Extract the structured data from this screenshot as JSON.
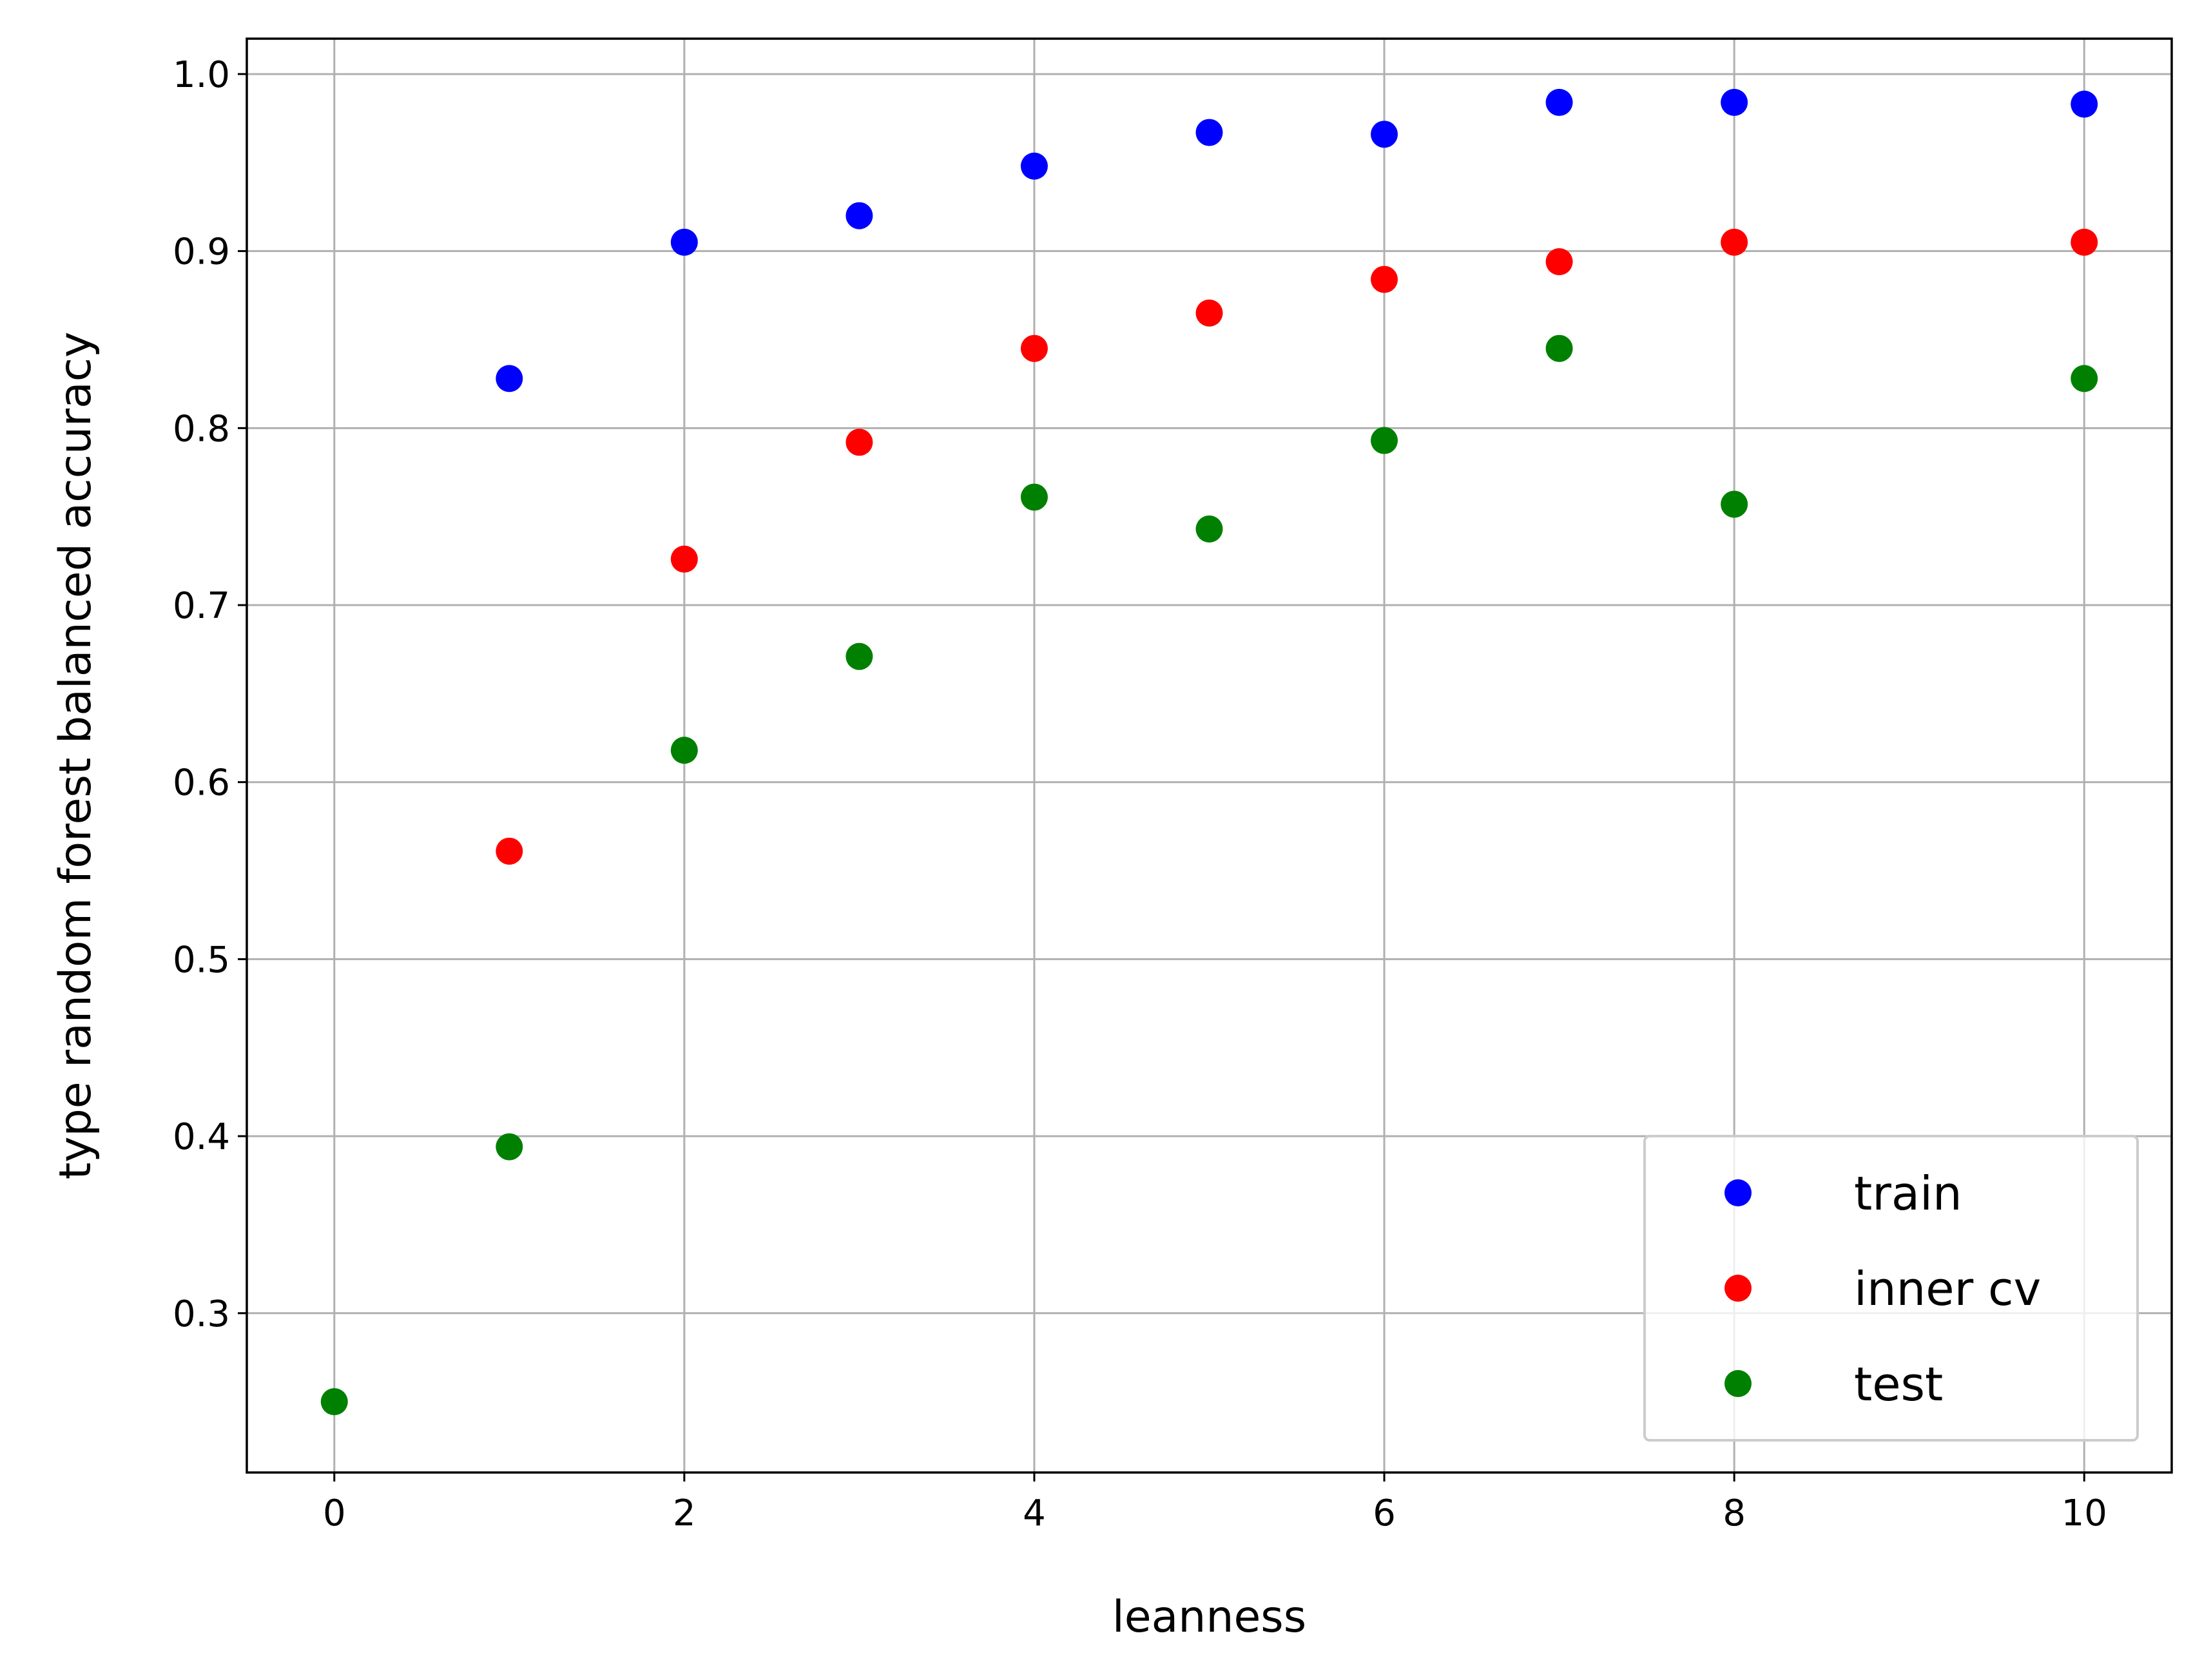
{
  "chart_data": {
    "type": "scatter",
    "title": "",
    "xlabel": "leanness",
    "ylabel": "type random forest balanced accuracy",
    "xlim": [
      -0.5,
      10.5
    ],
    "ylim": [
      0.21,
      1.02
    ],
    "xticks": [
      0,
      2,
      4,
      6,
      8,
      10
    ],
    "xtick_labels": [
      "0",
      "2",
      "4",
      "6",
      "8",
      "10"
    ],
    "yticks": [
      0.3,
      0.4,
      0.5,
      0.6,
      0.7,
      0.8,
      0.9,
      1.0
    ],
    "ytick_labels": [
      "0.3",
      "0.4",
      "0.5",
      "0.6",
      "0.7",
      "0.8",
      "0.9",
      "1.0"
    ],
    "grid": true,
    "legend_position": "bottom-right",
    "series": [
      {
        "name": "train",
        "color": "#0000ff",
        "x": [
          1,
          2,
          3,
          4,
          5,
          6,
          7,
          8,
          10
        ],
        "y": [
          0.828,
          0.905,
          0.92,
          0.948,
          0.967,
          0.966,
          0.984,
          0.984,
          0.983
        ]
      },
      {
        "name": "inner cv",
        "color": "#ff0000",
        "x": [
          1,
          2,
          3,
          4,
          5,
          6,
          7,
          8,
          10
        ],
        "y": [
          0.561,
          0.726,
          0.792,
          0.845,
          0.865,
          0.884,
          0.894,
          0.905,
          0.905
        ]
      },
      {
        "name": "test",
        "color": "#008000",
        "x": [
          0,
          1,
          2,
          3,
          4,
          5,
          6,
          7,
          8,
          10
        ],
        "y": [
          0.25,
          0.394,
          0.618,
          0.671,
          0.761,
          0.743,
          0.793,
          0.845,
          0.757,
          0.828
        ]
      }
    ]
  }
}
